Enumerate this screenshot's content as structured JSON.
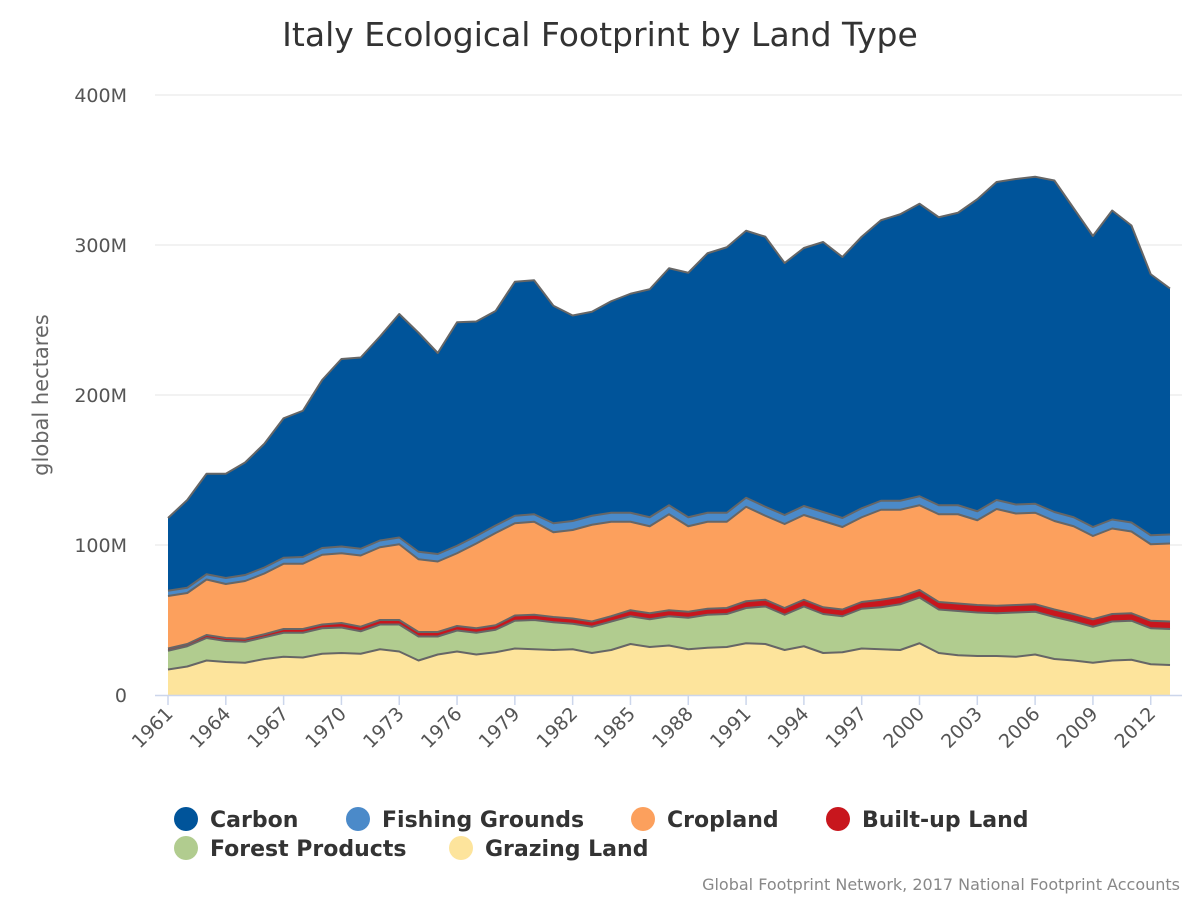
{
  "chart_data": {
    "type": "area",
    "stacked": true,
    "title": "Italy Ecological Footprint by Land Type",
    "ylabel": "global hectares",
    "ylim": [
      0,
      400000000
    ],
    "y_ticks": [
      0,
      100000000,
      200000000,
      300000000,
      400000000
    ],
    "y_tick_labels": [
      "0",
      "100M",
      "200M",
      "300M",
      "400M"
    ],
    "x": [
      1961,
      1962,
      1963,
      1964,
      1965,
      1966,
      1967,
      1968,
      1969,
      1970,
      1971,
      1972,
      1973,
      1974,
      1975,
      1976,
      1977,
      1978,
      1979,
      1980,
      1981,
      1982,
      1983,
      1984,
      1985,
      1986,
      1987,
      1988,
      1989,
      1990,
      1991,
      1992,
      1993,
      1994,
      1995,
      1996,
      1997,
      1998,
      1999,
      2000,
      2001,
      2002,
      2003,
      2004,
      2005,
      2006,
      2007,
      2008,
      2009,
      2010,
      2011,
      2012,
      2013
    ],
    "x_tick_labels": [
      "1961",
      "1964",
      "1967",
      "1970",
      "1973",
      "1976",
      "1979",
      "1982",
      "1985",
      "1988",
      "1991",
      "1994",
      "1997",
      "2000",
      "2003",
      "2006",
      "2009",
      "2012"
    ],
    "grid": true,
    "legend_position": "bottom",
    "series": [
      {
        "name": "Grazing Land",
        "color": "#fde49c",
        "values": [
          17,
          19,
          23,
          22,
          21.5,
          24,
          25.5,
          25,
          27.5,
          28,
          27.5,
          30.5,
          29,
          23,
          27,
          29,
          27,
          28.5,
          31,
          30.5,
          30,
          30.5,
          28,
          30,
          34,
          32,
          33,
          30.5,
          31.5,
          32,
          34.5,
          34,
          30,
          32.5,
          28,
          28.5,
          31,
          30.5,
          30,
          34.5,
          28,
          26.5,
          26,
          26,
          25.5,
          27,
          24,
          23,
          21.5,
          23,
          23.5,
          20.5,
          20
        ]
      },
      {
        "name": "Forest Products",
        "color": "#b1cc8f",
        "values": [
          12.5,
          13.5,
          15,
          14,
          14,
          14.5,
          16,
          16.5,
          17,
          17,
          15,
          16.5,
          18,
          16,
          12,
          14,
          14.5,
          15,
          18.5,
          19.5,
          18.5,
          17,
          17.5,
          19,
          18.5,
          18.5,
          19.5,
          21,
          22,
          22,
          23.5,
          25,
          23.5,
          26.5,
          26,
          24,
          26.5,
          28,
          30.5,
          30.5,
          29,
          29.5,
          29,
          28.5,
          29.5,
          28.5,
          28,
          26,
          24,
          26,
          26,
          24,
          24
        ]
      },
      {
        "name": "Built-up Land",
        "color": "#c8161d",
        "values": [
          1.5,
          1.5,
          2,
          2,
          2,
          2,
          2.5,
          2.5,
          2.5,
          3,
          3,
          3,
          3,
          3,
          3,
          3,
          3,
          3,
          3.5,
          3.5,
          3.5,
          3.5,
          3.5,
          3.5,
          4,
          4,
          4,
          4,
          4,
          4,
          4.5,
          4.5,
          4.5,
          4.5,
          4.5,
          4.5,
          4.5,
          5,
          5,
          5,
          5,
          5,
          5,
          5,
          5,
          5,
          5,
          5,
          5,
          5,
          5,
          5,
          5
        ]
      },
      {
        "name": "Cropland",
        "color": "#fca05d",
        "values": [
          35,
          34,
          37,
          36,
          38.5,
          40.5,
          43.5,
          43.5,
          46.5,
          46.5,
          47.5,
          48.5,
          50.5,
          48.5,
          47,
          48.5,
          56.5,
          61.5,
          61.5,
          62,
          56.5,
          59,
          64.5,
          63,
          59,
          58,
          64,
          57,
          58,
          57.5,
          63,
          56,
          56,
          56.5,
          57.5,
          55,
          56.5,
          60,
          58,
          56.5,
          58.5,
          59.5,
          56.5,
          64.5,
          61,
          61,
          59,
          58.5,
          55.5,
          57,
          54.5,
          51,
          52
        ]
      },
      {
        "name": "Fishing Grounds",
        "color": "#4b8ac9",
        "values": [
          3.5,
          3.5,
          3.5,
          4,
          4,
          4,
          4,
          4.5,
          4.5,
          4.5,
          4.5,
          4.5,
          4.5,
          5,
          5,
          5,
          5,
          5,
          5,
          5,
          6,
          6,
          6,
          6,
          6,
          6,
          6,
          6,
          6,
          6,
          6,
          6,
          6,
          6,
          6,
          6,
          6,
          6,
          6,
          6,
          6,
          6,
          6,
          6,
          6,
          6,
          6,
          6,
          6,
          6,
          6,
          6,
          6
        ]
      },
      {
        "name": "Carbon",
        "color": "#00549a",
        "values": [
          48.5,
          58.5,
          67,
          69.5,
          75,
          82.5,
          93,
          97.5,
          112,
          125,
          127.5,
          136,
          149,
          146,
          134,
          149,
          143,
          143,
          156,
          156,
          145,
          137,
          136,
          141,
          146,
          152,
          158,
          163,
          173,
          177,
          178,
          180,
          168,
          172,
          180,
          174,
          181,
          187,
          191,
          195,
          192,
          195,
          208,
          212,
          217,
          218,
          221,
          206,
          194,
          206,
          198,
          174,
          164
        ]
      }
    ],
    "units_multiplier": 1000000,
    "credit": "Global Footprint Network, 2017 National Footprint Accounts"
  }
}
